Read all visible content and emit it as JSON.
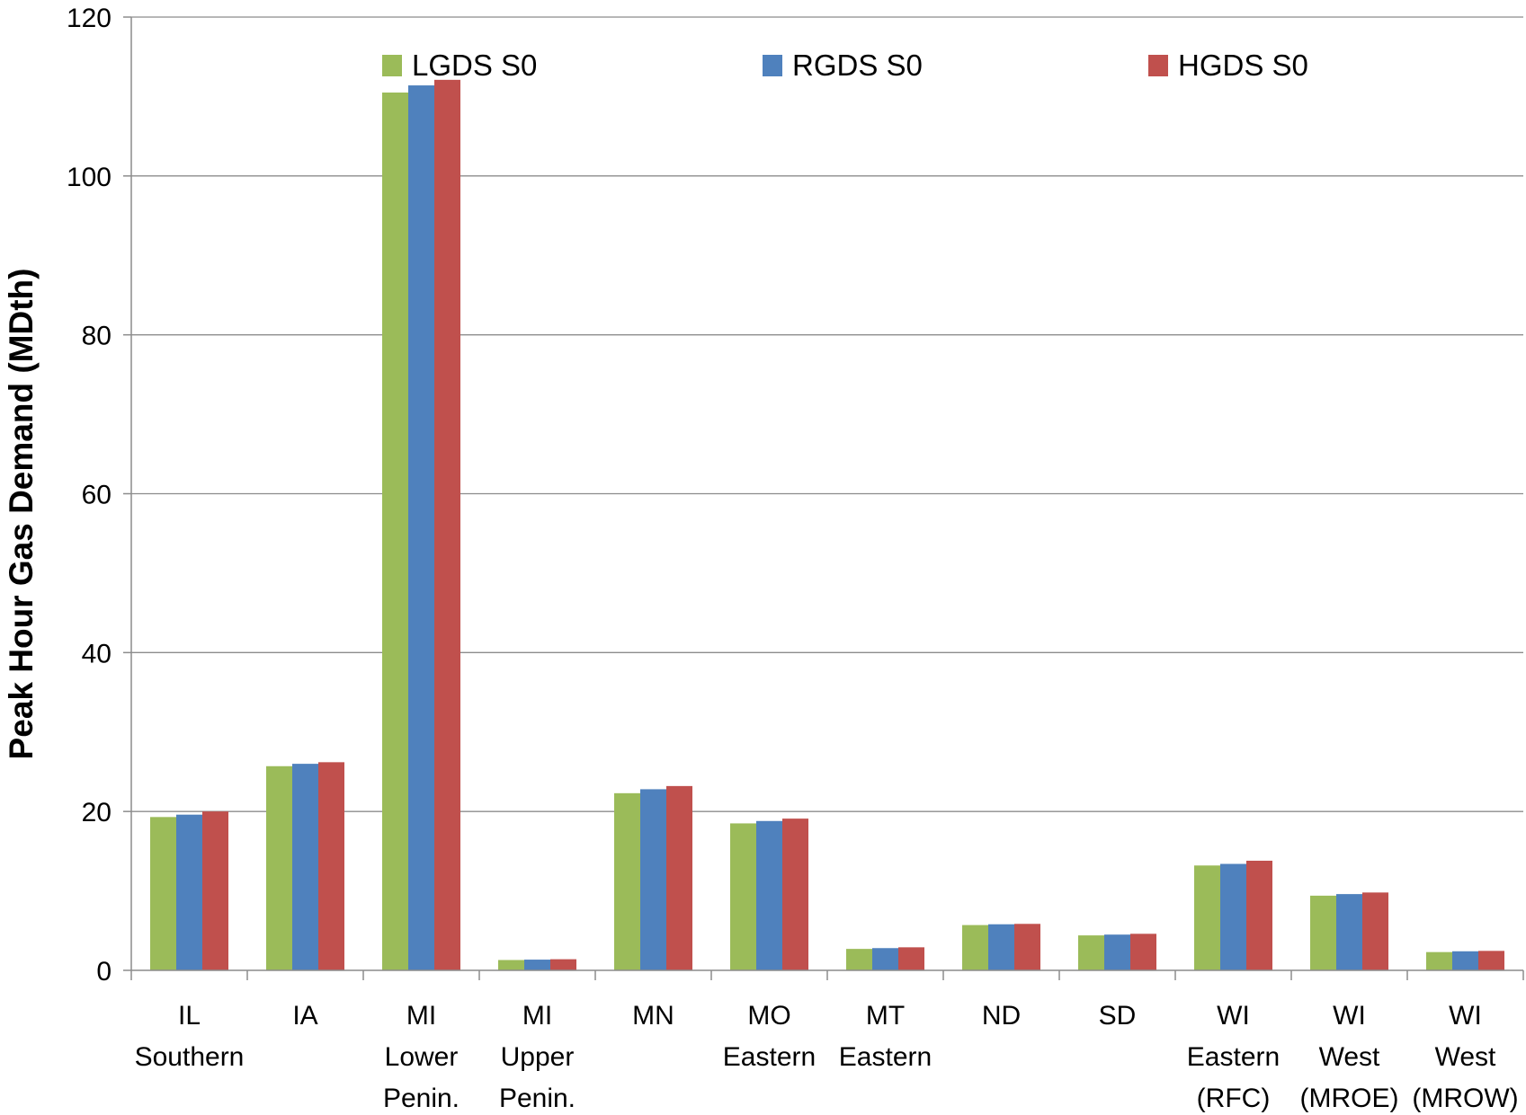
{
  "chart_data": {
    "type": "bar",
    "title": "",
    "xlabel": "",
    "ylabel": "Peak Hour Gas Demand (MDth)",
    "ylim": [
      0,
      120
    ],
    "yticks": [
      0,
      20,
      40,
      60,
      80,
      100,
      120
    ],
    "grid": true,
    "legend_position": "top",
    "categories": [
      [
        "IL",
        "Southern"
      ],
      [
        "IA"
      ],
      [
        "MI",
        "Lower",
        "Penin."
      ],
      [
        "MI",
        "Upper",
        "Penin."
      ],
      [
        "MN"
      ],
      [
        "MO",
        "Eastern"
      ],
      [
        "MT",
        "Eastern"
      ],
      [
        "ND"
      ],
      [
        "SD"
      ],
      [
        "WI",
        "Eastern",
        "(RFC)"
      ],
      [
        "WI",
        "West",
        "(MROE)"
      ],
      [
        "WI",
        "West",
        "(MROW)"
      ]
    ],
    "series": [
      {
        "name": "LGDS S0",
        "color": "#9bbb59",
        "values": [
          19.3,
          25.7,
          110.5,
          1.3,
          22.3,
          18.5,
          2.7,
          5.7,
          4.4,
          13.2,
          9.4,
          2.3
        ]
      },
      {
        "name": "RGDS S0",
        "color": "#4f81bd",
        "values": [
          19.6,
          26.0,
          111.4,
          1.35,
          22.8,
          18.8,
          2.8,
          5.8,
          4.5,
          13.4,
          9.6,
          2.4
        ]
      },
      {
        "name": "HGDS S0",
        "color": "#c0504d",
        "values": [
          20.0,
          26.2,
          112.1,
          1.4,
          23.2,
          19.1,
          2.9,
          5.85,
          4.6,
          13.8,
          9.8,
          2.45
        ]
      }
    ]
  }
}
